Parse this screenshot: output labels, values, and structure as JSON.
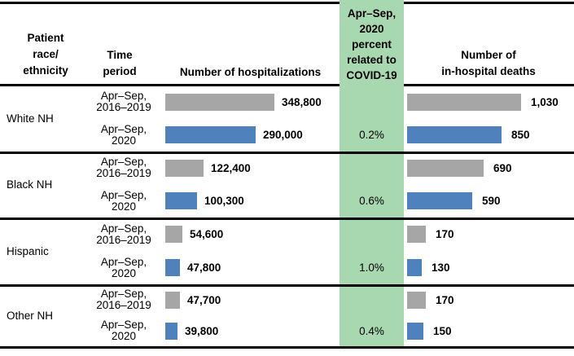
{
  "header": {
    "col_race": "Patient\nrace/\nethnicity",
    "col_time": "Time\nperiod",
    "col_hospitalizations": "Number of hospitalizations",
    "col_covid_pct": "Apr–Sep,\n2020\npercent\nrelated to\nCOVID-19",
    "col_deaths": "Number of\nin-hospital deaths"
  },
  "colors": {
    "bar_prior_gray": "#A6A6A6",
    "bar_2020_blue": "#4F81BD",
    "covid_column_green": "#A8D8B0",
    "rule_black": "#000000"
  },
  "groups": [
    {
      "race": "White NH",
      "rows": [
        {
          "time": "Apr–Sep,\n2016–2019",
          "hosp_value": 348800,
          "hosp_label": "348,800",
          "pct": "",
          "deaths_value": 1030,
          "deaths_label": "1,030"
        },
        {
          "time": "Apr–Sep,\n2020",
          "hosp_value": 290000,
          "hosp_label": "290,000",
          "pct": "0.2%",
          "deaths_value": 850,
          "deaths_label": "850"
        }
      ]
    },
    {
      "race": "Black NH",
      "rows": [
        {
          "time": "Apr–Sep,\n2016–2019",
          "hosp_value": 122400,
          "hosp_label": "122,400",
          "pct": "",
          "deaths_value": 690,
          "deaths_label": "690"
        },
        {
          "time": "Apr–Sep,\n2020",
          "hosp_value": 100300,
          "hosp_label": "100,300",
          "pct": "0.6%",
          "deaths_value": 590,
          "deaths_label": "590"
        }
      ]
    },
    {
      "race": "Hispanic",
      "rows": [
        {
          "time": "Apr–Sep,\n2016–2019",
          "hosp_value": 54600,
          "hosp_label": "54,600",
          "pct": "",
          "deaths_value": 170,
          "deaths_label": "170"
        },
        {
          "time": "Apr–Sep,\n2020",
          "hosp_value": 47800,
          "hosp_label": "47,800",
          "pct": "1.0%",
          "deaths_value": 130,
          "deaths_label": "130"
        }
      ]
    },
    {
      "race": "Other NH",
      "rows": [
        {
          "time": "Apr–Sep,\n2016–2019",
          "hosp_value": 47700,
          "hosp_label": "47,700",
          "pct": "",
          "deaths_value": 170,
          "deaths_label": "170"
        },
        {
          "time": "Apr–Sep,\n2020",
          "hosp_value": 39800,
          "hosp_label": "39,800",
          "pct": "0.4%",
          "deaths_value": 150,
          "deaths_label": "150"
        }
      ]
    }
  ],
  "chart_data": {
    "type": "bar",
    "orientation": "horizontal",
    "title": "",
    "categories": [
      "White NH",
      "Black NH",
      "Hispanic",
      "Other NH"
    ],
    "series": [
      {
        "name": "Apr–Sep, 2016–2019 number of hospitalizations",
        "color": "#A6A6A6",
        "values": [
          348800,
          122400,
          54600,
          47700
        ]
      },
      {
        "name": "Apr–Sep, 2020 number of hospitalizations",
        "color": "#4F81BD",
        "values": [
          290000,
          100300,
          47800,
          39800
        ]
      },
      {
        "name": "Apr–Sep, 2020 percent related to COVID-19",
        "values": [
          0.2,
          0.6,
          1.0,
          0.4
        ],
        "unit": "%"
      },
      {
        "name": "Apr–Sep, 2016–2019 number of in-hospital deaths",
        "color": "#A6A6A6",
        "values": [
          1030,
          690,
          170,
          170
        ]
      },
      {
        "name": "Apr–Sep, 2020 number of in-hospital deaths",
        "color": "#4F81BD",
        "values": [
          850,
          590,
          130,
          150
        ]
      }
    ],
    "layout": {
      "axes": "none",
      "grid": false,
      "data_labels": "end-of-bar",
      "legend": "none",
      "highlight_column": "Apr–Sep, 2020 percent related to COVID-19"
    }
  }
}
